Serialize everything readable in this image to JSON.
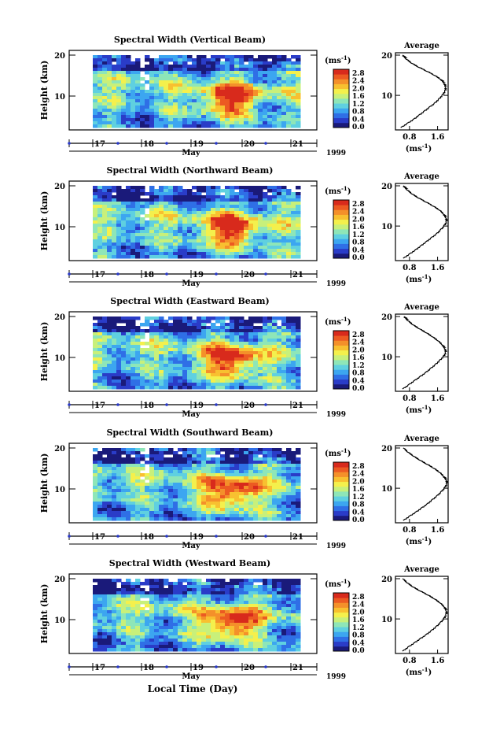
{
  "figure": {
    "xlabel": "Local Time (Day)",
    "month_label": "May",
    "year_label": "1999",
    "unit_label": "(ms",
    "unit_sup": "-1",
    "unit_close": ")",
    "avg_title": "Average",
    "height_label": "Height (km)"
  },
  "colorbar": {
    "ticks": [
      "2.8",
      "2.4",
      "2.0",
      "1.6",
      "1.2",
      "0.8",
      "0.4",
      "0.0"
    ],
    "colors": [
      "#1a1a7a",
      "#2a3cc8",
      "#2f6fe6",
      "#3ca6f0",
      "#5fd0e0",
      "#8ee6b8",
      "#c8f07a",
      "#f4f04c",
      "#f8c030",
      "#f4902a",
      "#ec5a22",
      "#d82a1c"
    ]
  },
  "chart_data": [
    {
      "type": "heatmap",
      "title": "Spectral Width (Vertical Beam)",
      "xlabel": "May",
      "ylabel": "Height (km)",
      "x_ticks": [
        "17",
        "18",
        "19",
        "20",
        "21"
      ],
      "y_ticks": [
        "20",
        "10"
      ],
      "ylim": [
        2,
        20
      ],
      "clim": [
        0.0,
        3.0
      ],
      "colorbar_label": "(ms-1)"
    },
    {
      "type": "heatmap",
      "title": "Spectral Width (Northward Beam)",
      "xlabel": "May",
      "ylabel": "Height (km)",
      "x_ticks": [
        "17",
        "18",
        "19",
        "20",
        "21"
      ],
      "y_ticks": [
        "20",
        "10"
      ],
      "ylim": [
        2,
        20
      ],
      "clim": [
        0.0,
        3.0
      ],
      "colorbar_label": "(ms-1)"
    },
    {
      "type": "heatmap",
      "title": "Spectral Width (Eastward Beam)",
      "xlabel": "May",
      "ylabel": "Height (km)",
      "x_ticks": [
        "17",
        "18",
        "19",
        "20",
        "21"
      ],
      "y_ticks": [
        "20",
        "10"
      ],
      "ylim": [
        2,
        20
      ],
      "clim": [
        0.0,
        3.0
      ],
      "colorbar_label": "(ms-1)"
    },
    {
      "type": "heatmap",
      "title": "Spectral Width (Southward Beam)",
      "xlabel": "May",
      "ylabel": "Height (km)",
      "x_ticks": [
        "17",
        "18",
        "19",
        "20",
        "21"
      ],
      "y_ticks": [
        "20",
        "10"
      ],
      "ylim": [
        2,
        20
      ],
      "clim": [
        0.0,
        3.0
      ],
      "colorbar_label": "(ms-1)"
    },
    {
      "type": "heatmap",
      "title": "Spectral Width (Westward Beam)",
      "xlabel": "Local Time (Day)",
      "ylabel": "Height (km)",
      "x_ticks": [
        "17",
        "18",
        "19",
        "20",
        "21"
      ],
      "y_ticks": [
        "20",
        "10"
      ],
      "ylim": [
        2,
        20
      ],
      "clim": [
        0.0,
        3.0
      ],
      "colorbar_label": "(ms-1)"
    },
    {
      "type": "line",
      "title": "Average",
      "xlabel": "(ms-1)",
      "x_ticks": [
        "0.8",
        "1.6"
      ],
      "y_ticks": [
        "20",
        "10"
      ],
      "ylim": [
        2,
        20
      ],
      "xlim": [
        0.4,
        1.9
      ],
      "x": [
        0.55,
        0.72,
        0.9,
        1.05,
        1.2,
        1.35,
        1.5,
        1.62,
        1.72,
        1.8,
        1.82,
        1.78,
        1.68,
        1.5,
        1.28,
        1.05,
        0.85,
        0.7,
        0.6
      ],
      "y": [
        2,
        3,
        4,
        5,
        6,
        7,
        8,
        9,
        10,
        11,
        12,
        13,
        14,
        15,
        16,
        17,
        18,
        19,
        20
      ]
    },
    {
      "type": "line",
      "title": "Average",
      "xlabel": "(ms-1)",
      "x_ticks": [
        "0.8",
        "1.6"
      ],
      "y_ticks": [
        "20",
        "10"
      ],
      "ylim": [
        2,
        20
      ],
      "xlim": [
        0.4,
        1.9
      ],
      "x": [
        0.62,
        0.78,
        0.95,
        1.1,
        1.25,
        1.4,
        1.55,
        1.67,
        1.77,
        1.84,
        1.83,
        1.76,
        1.64,
        1.46,
        1.25,
        1.04,
        0.86,
        0.72,
        0.62
      ],
      "y": [
        2,
        3,
        4,
        5,
        6,
        7,
        8,
        9,
        10,
        11,
        12,
        13,
        14,
        15,
        16,
        17,
        18,
        19,
        20
      ]
    },
    {
      "type": "line",
      "title": "Average",
      "xlabel": "(ms-1)",
      "x_ticks": [
        "0.8",
        "1.6"
      ],
      "y_ticks": [
        "20",
        "10"
      ],
      "ylim": [
        2,
        20
      ],
      "xlim": [
        0.4,
        1.9
      ],
      "x": [
        0.6,
        0.76,
        0.92,
        1.08,
        1.24,
        1.38,
        1.52,
        1.64,
        1.75,
        1.82,
        1.8,
        1.72,
        1.6,
        1.44,
        1.26,
        1.06,
        0.88,
        0.74,
        0.64
      ],
      "y": [
        2,
        3,
        4,
        5,
        6,
        7,
        8,
        9,
        10,
        11,
        12,
        13,
        14,
        15,
        16,
        17,
        18,
        19,
        20
      ]
    },
    {
      "type": "line",
      "title": "Average",
      "xlabel": "(ms-1)",
      "x_ticks": [
        "0.8",
        "1.6"
      ],
      "y_ticks": [
        "20",
        "10"
      ],
      "ylim": [
        2,
        20
      ],
      "xlim": [
        0.4,
        1.9
      ],
      "x": [
        0.62,
        0.78,
        0.96,
        1.12,
        1.28,
        1.42,
        1.56,
        1.68,
        1.78,
        1.85,
        1.84,
        1.76,
        1.64,
        1.48,
        1.28,
        1.08,
        0.9,
        0.74,
        0.62
      ],
      "y": [
        2,
        3,
        4,
        5,
        6,
        7,
        8,
        9,
        10,
        11,
        12,
        13,
        14,
        15,
        16,
        17,
        18,
        19,
        20
      ]
    },
    {
      "type": "line",
      "title": "Average",
      "xlabel": "(ms-1)",
      "x_ticks": [
        "0.8",
        "1.6"
      ],
      "y_ticks": [
        "20",
        "10"
      ],
      "ylim": [
        2,
        20
      ],
      "xlim": [
        0.4,
        1.9
      ],
      "x": [
        0.6,
        0.75,
        0.92,
        1.08,
        1.25,
        1.4,
        1.54,
        1.66,
        1.76,
        1.83,
        1.84,
        1.78,
        1.66,
        1.5,
        1.3,
        1.08,
        0.88,
        0.72,
        0.6
      ],
      "y": [
        2,
        3,
        4,
        5,
        6,
        7,
        8,
        9,
        10,
        11,
        12,
        13,
        14,
        15,
        16,
        17,
        18,
        19,
        20
      ]
    }
  ]
}
